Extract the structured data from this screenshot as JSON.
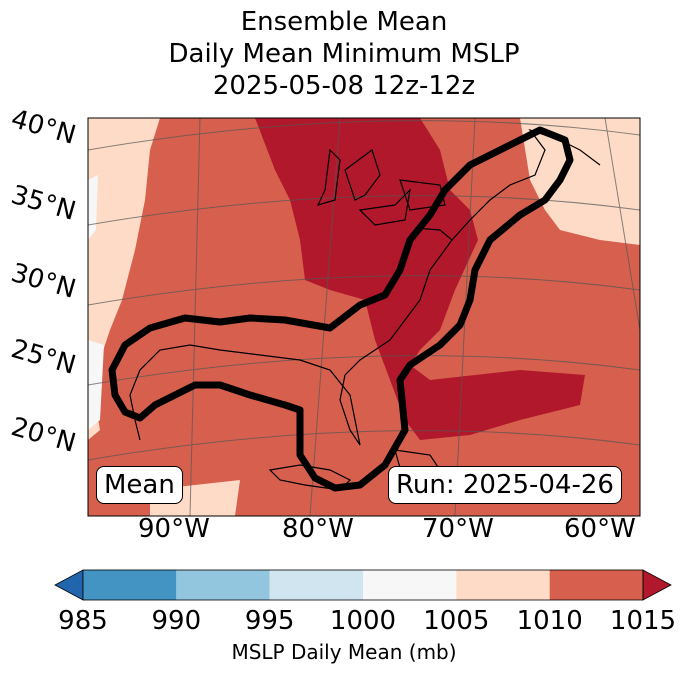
{
  "title": {
    "line1": "Ensemble Mean",
    "line2": "Daily Mean Minimum MSLP",
    "line3": "2025-05-08 12z-12z"
  },
  "map": {
    "lat_labels": [
      "40°N",
      "35°N",
      "30°N",
      "25°N",
      "20°N"
    ],
    "lon_labels": [
      "90°W",
      "80°W",
      "70°W",
      "60°W"
    ],
    "mean_label": "Mean",
    "run_label": "Run: 2025-04-26",
    "contour_description_colors": {
      "outline": "#000000"
    }
  },
  "colorbar": {
    "title": "MSLP Daily Mean (mb)",
    "ticks": [
      "985",
      "990",
      "995",
      "1000",
      "1005",
      "1010",
      "1015"
    ],
    "bins": [
      {
        "range": "<985",
        "color": "#2166ac"
      },
      {
        "range": "985-990",
        "color": "#4393c3"
      },
      {
        "range": "990-995",
        "color": "#92c5de"
      },
      {
        "range": "995-1000",
        "color": "#d1e5f0"
      },
      {
        "range": "1000-1005",
        "color": "#f7f7f7"
      },
      {
        "range": "1005-1010",
        "color": "#fddbc7"
      },
      {
        "range": "1010-1015",
        "color": "#d6604d"
      },
      {
        "range": ">1015",
        "color": "#b2182b"
      }
    ]
  }
}
